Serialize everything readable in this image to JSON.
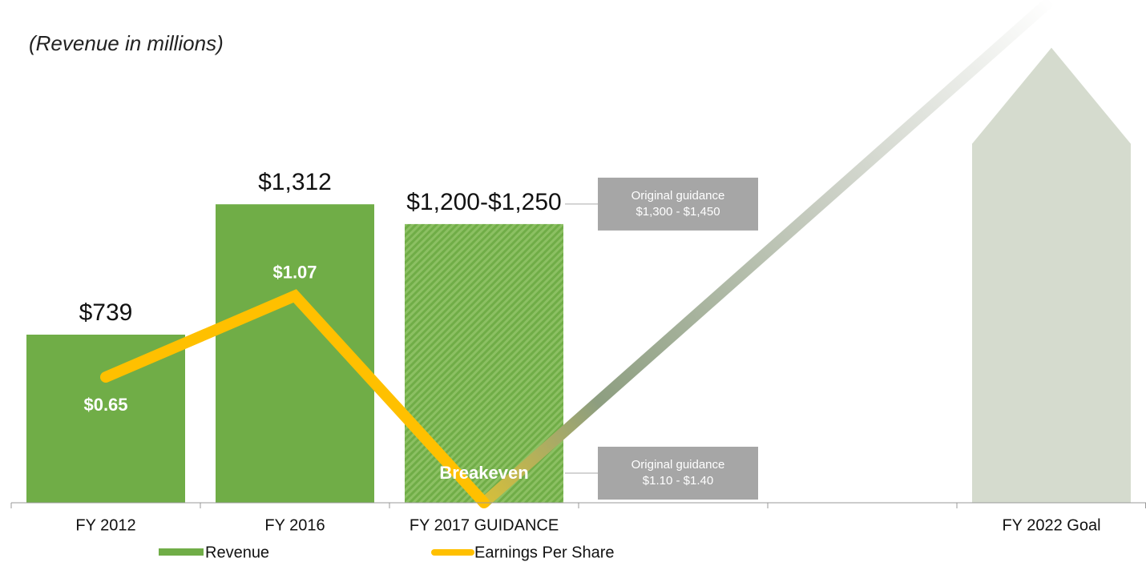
{
  "chart_data": {
    "type": "bar_line",
    "subtitle": "(Revenue in millions)",
    "categories": [
      "FY 2012",
      "FY 2016",
      "FY 2017 GUIDANCE",
      null,
      null,
      "FY 2022 Goal"
    ],
    "series": [
      {
        "name": "Revenue",
        "color": "#70ad47",
        "values": [
          739,
          1312,
          1225,
          null,
          null,
          2000
        ],
        "value_labels": [
          "$739",
          "$1,312",
          "$1,200-$1,250",
          null,
          null,
          null
        ]
      },
      {
        "name": "Earnings Per Share",
        "color": "#ffc000",
        "axis": "y2",
        "values": [
          0.65,
          1.07,
          0,
          null,
          null,
          2.6
        ],
        "value_labels": [
          "$0.65",
          "$1.07",
          "Breakeven",
          null,
          null,
          null
        ]
      }
    ],
    "ylim": [
      0,
      2210
    ],
    "y2lim": [
      0,
      2.6
    ],
    "annotations": [
      {
        "title": "Original guidance",
        "text": "$1,300 - $1,450"
      },
      {
        "title": "Original guidance",
        "text": "$1.10 - $1.40"
      }
    ],
    "legend": "bottom"
  }
}
